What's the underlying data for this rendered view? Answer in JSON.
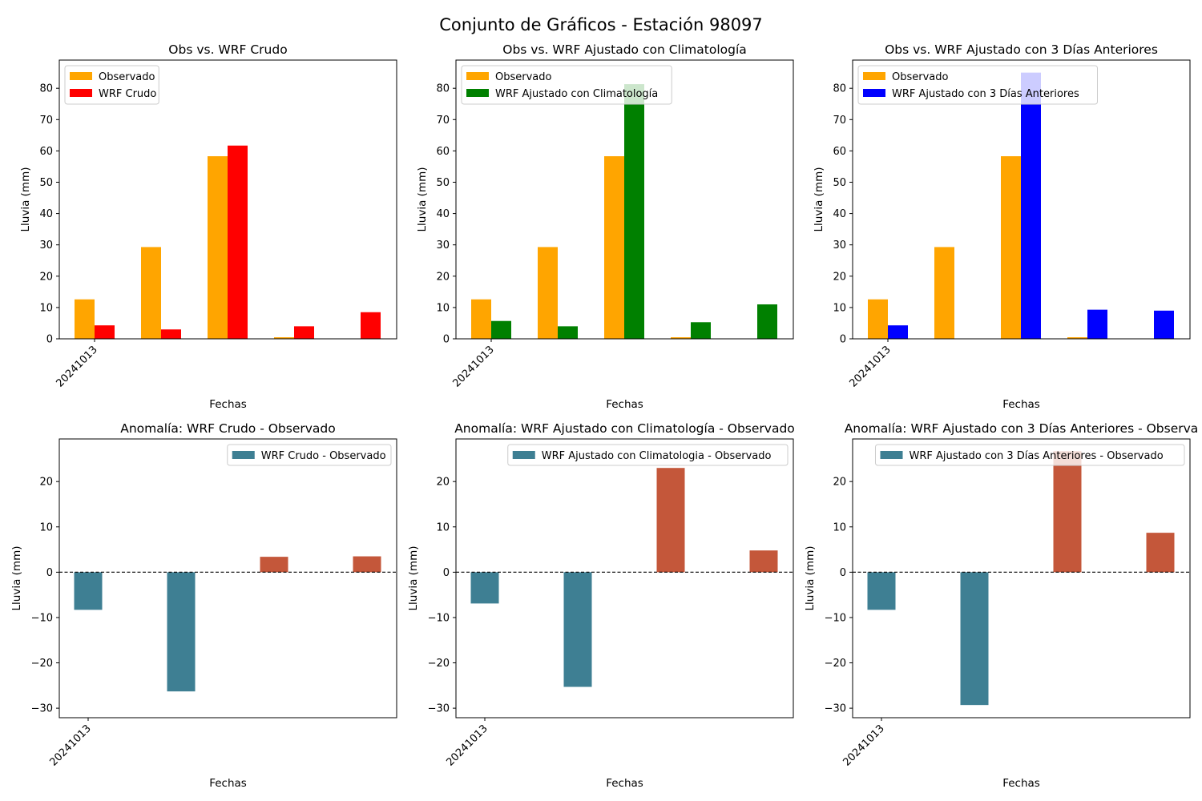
{
  "figure": {
    "title": "Conjunto de Gráficos - Estación 98097"
  },
  "colors": {
    "observed": "#ffa500",
    "wrf_crudo": "#ff0000",
    "wrf_clim": "#008000",
    "wrf_3d": "#0000ff",
    "anomaly_negative": "#3e7f93",
    "anomaly_positive": "#c4573a"
  },
  "chart_data": [
    {
      "type": "bar",
      "title": "Obs vs. WRF Crudo",
      "xlabel": "Fechas",
      "ylabel": "Lluvia (mm)",
      "x_tick_labels": [
        "20241013"
      ],
      "ylim": [
        0,
        89
      ],
      "yticks": [
        "0",
        "10",
        "20",
        "30",
        "40",
        "50",
        "60",
        "70",
        "80"
      ],
      "legend_position": "top-left",
      "series": [
        {
          "name": "Observado",
          "color": "#ffa500",
          "values": [
            12.6,
            29.3,
            58.3,
            0.5,
            0
          ]
        },
        {
          "name": "WRF Crudo",
          "color": "#ff0000",
          "values": [
            4.3,
            3.0,
            61.7,
            4.0,
            8.5
          ]
        }
      ]
    },
    {
      "type": "bar",
      "title": "Obs vs. WRF Ajustado con Climatología",
      "xlabel": "Fechas",
      "ylabel": "Lluvia (mm)",
      "x_tick_labels": [
        "20241013"
      ],
      "ylim": [
        0,
        89
      ],
      "yticks": [
        "0",
        "10",
        "20",
        "30",
        "40",
        "50",
        "60",
        "70",
        "80"
      ],
      "legend_position": "top-left",
      "series": [
        {
          "name": "Observado",
          "color": "#ffa500",
          "values": [
            12.6,
            29.3,
            58.3,
            0.5,
            0
          ]
        },
        {
          "name": "WRF Ajustado con Climatología",
          "color": "#008000",
          "values": [
            5.7,
            4.0,
            81.3,
            5.3,
            11.0
          ]
        }
      ]
    },
    {
      "type": "bar",
      "title": "Obs vs. WRF Ajustado con 3 Días Anteriores",
      "xlabel": "Fechas",
      "ylabel": "Lluvia (mm)",
      "x_tick_labels": [
        "20241013"
      ],
      "ylim": [
        0,
        89
      ],
      "yticks": [
        "0",
        "10",
        "20",
        "30",
        "40",
        "50",
        "60",
        "70",
        "80"
      ],
      "legend_position": "top-left",
      "series": [
        {
          "name": "Observado",
          "color": "#ffa500",
          "values": [
            12.6,
            29.3,
            58.3,
            0.5,
            0
          ]
        },
        {
          "name": "WRF Ajustado con 3 Días Anteriores",
          "color": "#0000ff",
          "values": [
            4.3,
            0,
            85.0,
            9.3,
            9.0
          ]
        }
      ]
    },
    {
      "type": "bar",
      "title": "Anomalía: WRF Crudo - Observado",
      "xlabel": "Fechas",
      "ylabel": "Lluvia (mm)",
      "x_tick_labels": [
        "20241013"
      ],
      "ylim": [
        -32.1,
        29.4
      ],
      "yticks": [
        "−30",
        "−20",
        "−10",
        "0",
        "10",
        "20"
      ],
      "legend_position": "top-right",
      "series": [
        {
          "name": "WRF Crudo - Observado",
          "values": [
            -8.3,
            -26.3,
            3.4,
            3.5
          ]
        }
      ]
    },
    {
      "type": "bar",
      "title": "Anomalía: WRF Ajustado con Climatología - Observado",
      "xlabel": "Fechas",
      "ylabel": "Lluvia (mm)",
      "x_tick_labels": [
        "20241013"
      ],
      "ylim": [
        -32.1,
        29.4
      ],
      "yticks": [
        "−30",
        "−20",
        "−10",
        "0",
        "10",
        "20"
      ],
      "legend_position": "top-right",
      "series": [
        {
          "name": "WRF Ajustado con Climatologia - Observado",
          "values": [
            -6.9,
            -25.3,
            23.0,
            4.8
          ]
        }
      ]
    },
    {
      "type": "bar",
      "title": "Anomalía: WRF Ajustado con 3 Días Anteriores - Observa",
      "xlabel": "Fechas",
      "ylabel": "Lluvia (mm)",
      "x_tick_labels": [
        "20241013"
      ],
      "ylim": [
        -32.1,
        29.4
      ],
      "yticks": [
        "−30",
        "−20",
        "−10",
        "0",
        "10",
        "20"
      ],
      "legend_position": "top-right",
      "series": [
        {
          "name": "WRF Ajustado con 3 Días Anteriores - Observado",
          "values": [
            -8.3,
            -29.3,
            26.7,
            8.7
          ]
        }
      ]
    }
  ]
}
